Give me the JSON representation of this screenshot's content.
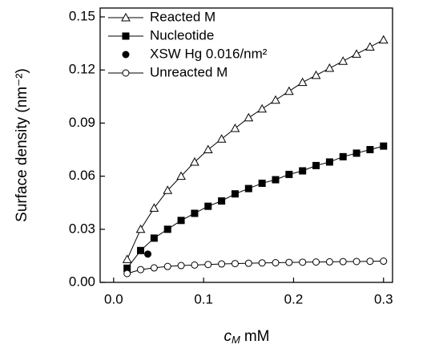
{
  "chart_data": {
    "type": "line",
    "xlabel": {
      "symbol": "c",
      "subscript": "M",
      "unit": "mM"
    },
    "ylabel": "Surface density (nm⁻²)",
    "xlim": [
      -0.015,
      0.31
    ],
    "ylim": [
      0,
      0.155
    ],
    "xticks": [
      {
        "value": 0,
        "label": "0.0"
      },
      0.1,
      0.2,
      0.3
    ],
    "yticks": [
      {
        "value": 0,
        "label": "0.00"
      },
      0.03,
      0.06,
      0.09,
      0.12,
      0.15
    ],
    "legend": "top-left",
    "series": [
      {
        "name": "Reacted M",
        "color": "#000000",
        "marker": "triangle-open",
        "line": true,
        "x": [
          0.015,
          0.03,
          0.045,
          0.06,
          0.075,
          0.09,
          0.105,
          0.12,
          0.135,
          0.15,
          0.165,
          0.18,
          0.195,
          0.21,
          0.225,
          0.24,
          0.255,
          0.27,
          0.285,
          0.3
        ],
        "values": [
          0.013,
          0.03,
          0.042,
          0.052,
          0.06,
          0.068,
          0.075,
          0.081,
          0.087,
          0.093,
          0.098,
          0.103,
          0.108,
          0.113,
          0.117,
          0.121,
          0.125,
          0.129,
          0.133,
          0.137
        ]
      },
      {
        "name": "Nucleotide",
        "color": "#000000",
        "marker": "square-filled",
        "line": true,
        "x": [
          0.015,
          0.03,
          0.045,
          0.06,
          0.075,
          0.09,
          0.105,
          0.12,
          0.135,
          0.15,
          0.165,
          0.18,
          0.195,
          0.21,
          0.225,
          0.24,
          0.255,
          0.27,
          0.285,
          0.3
        ],
        "values": [
          0.008,
          0.018,
          0.025,
          0.03,
          0.035,
          0.039,
          0.043,
          0.046,
          0.05,
          0.053,
          0.056,
          0.058,
          0.061,
          0.063,
          0.066,
          0.068,
          0.071,
          0.073,
          0.075,
          0.077
        ]
      },
      {
        "name": "XSW Hg 0.016/nm²",
        "color": "#000000",
        "marker": "circle-filled",
        "line": false,
        "x": [
          0.038
        ],
        "values": [
          0.016
        ]
      },
      {
        "name": "Unreacted M",
        "color": "#000000",
        "marker": "circle-open",
        "line": true,
        "x": [
          0.015,
          0.03,
          0.045,
          0.06,
          0.075,
          0.09,
          0.105,
          0.12,
          0.135,
          0.15,
          0.165,
          0.18,
          0.195,
          0.21,
          0.225,
          0.24,
          0.255,
          0.27,
          0.285,
          0.3
        ],
        "values": [
          0.005,
          0.0072,
          0.0082,
          0.009,
          0.0095,
          0.0098,
          0.0101,
          0.0104,
          0.0106,
          0.0108,
          0.011,
          0.0111,
          0.0113,
          0.0114,
          0.0115,
          0.0116,
          0.0117,
          0.0118,
          0.0119,
          0.012
        ]
      }
    ]
  }
}
